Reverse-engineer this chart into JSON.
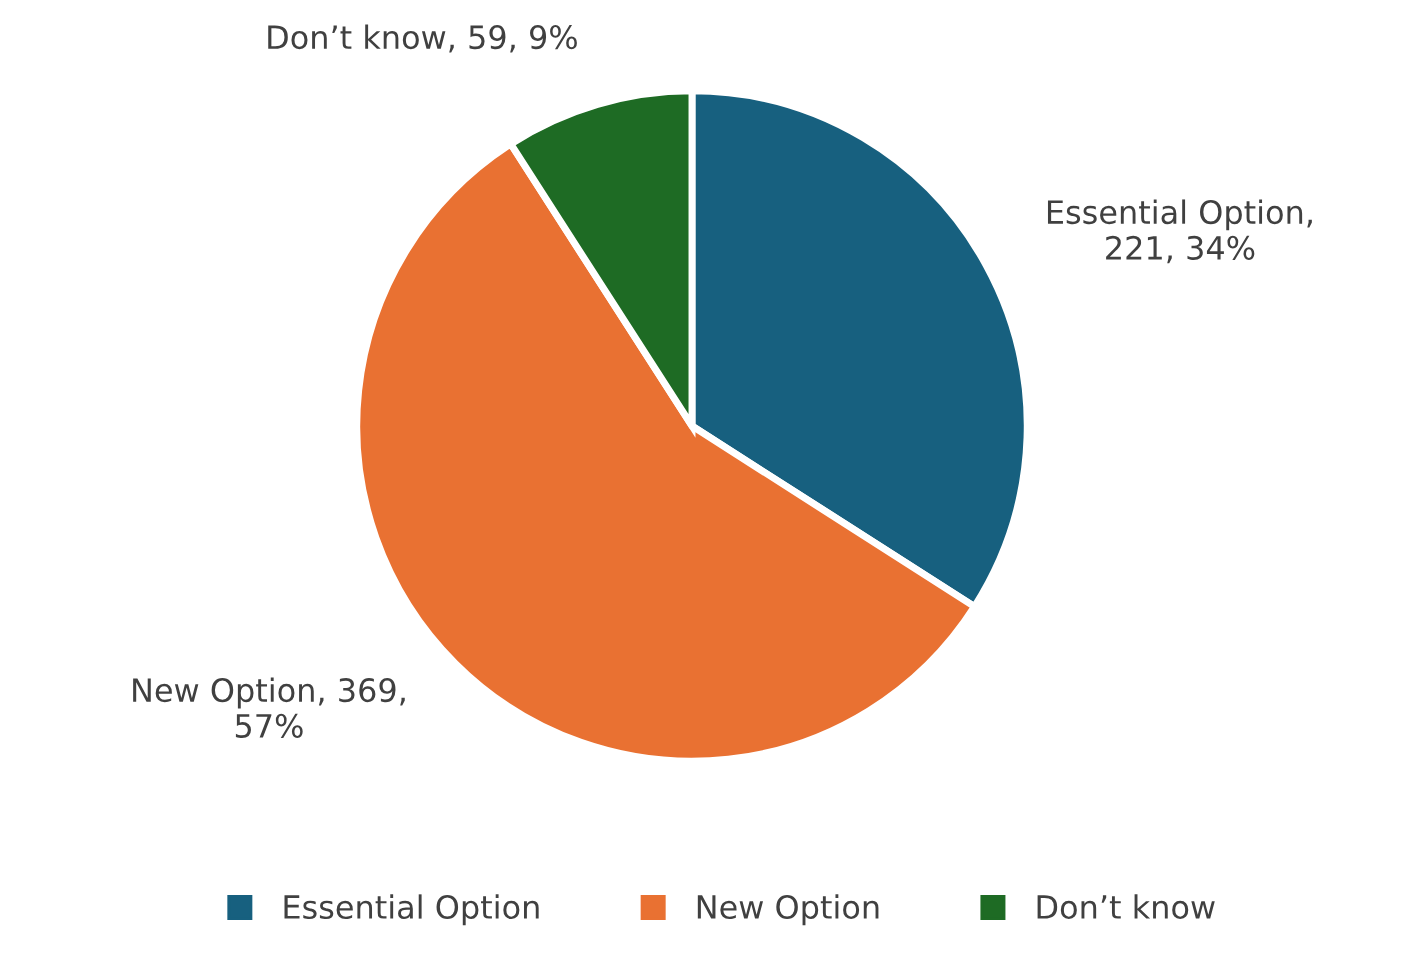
{
  "chart_data": {
    "type": "pie",
    "categories": [
      "Essential Option",
      "New Option",
      "Don’t know"
    ],
    "values": [
      221,
      369,
      59
    ],
    "value_labels": [
      "Essential Option, 221, 34%",
      "New Option, 369, 57%",
      "Don’t know, 59, 9%"
    ],
    "colors": [
      "#17607f",
      "#e97132",
      "#1e6b24"
    ],
    "legend": "bottom"
  }
}
